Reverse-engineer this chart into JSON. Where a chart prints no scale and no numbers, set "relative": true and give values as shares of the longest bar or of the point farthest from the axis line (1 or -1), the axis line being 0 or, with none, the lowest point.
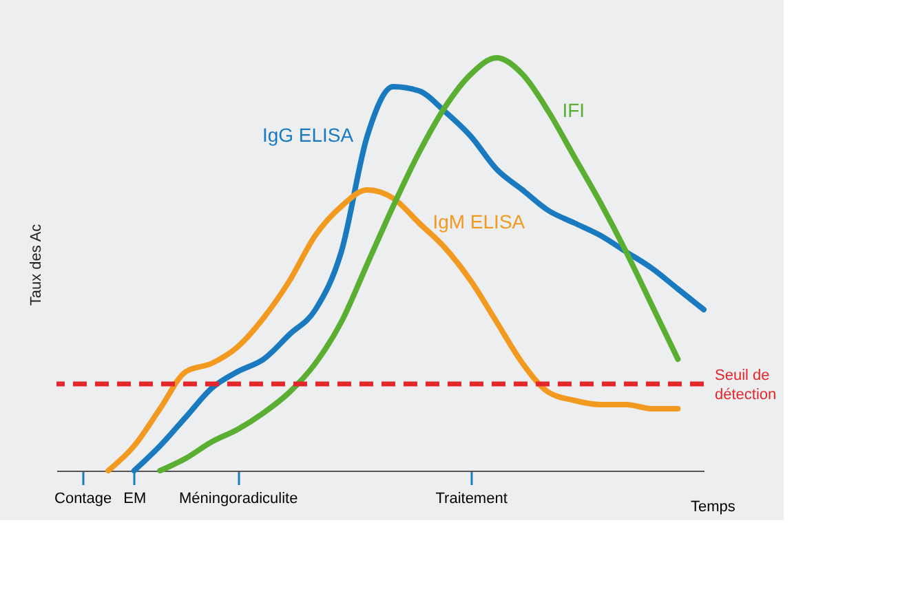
{
  "chart_data": {
    "type": "line",
    "relative": true,
    "xlabel": "Temps",
    "ylabel": "Taux des Ac",
    "categories": [
      null,
      "Contage",
      null,
      "EM",
      null,
      null,
      null,
      "Méningoradiculite",
      null,
      null,
      null,
      null,
      null,
      null,
      null,
      null,
      "Traitement",
      null,
      null,
      null,
      null,
      null,
      null,
      null,
      null,
      null
    ],
    "grid": false,
    "marker": "none",
    "line_style": "solid",
    "series": [
      {
        "name": "IgG ELISA",
        "color": "#1a7abf",
        "values": [
          null,
          null,
          null,
          0,
          0.06,
          0.13,
          0.2,
          0.24,
          0.27,
          0.33,
          0.39,
          0.53,
          0.81,
          0.93,
          0.92,
          0.87,
          0.81,
          0.73,
          0.68,
          0.63,
          0.6,
          0.57,
          0.53,
          0.49,
          0.44,
          0.39
        ]
      },
      {
        "name": "IgM ELISA",
        "color": "#f29a1f",
        "values": [
          null,
          null,
          0,
          0.06,
          0.15,
          0.24,
          0.26,
          0.3,
          0.37,
          0.46,
          0.57,
          0.64,
          0.68,
          0.66,
          0.6,
          0.54,
          0.46,
          0.36,
          0.26,
          0.19,
          0.17,
          0.16,
          0.16,
          0.15,
          0.15,
          null
        ]
      },
      {
        "name": "IFI",
        "color": "#5aaf32",
        "values": [
          null,
          null,
          null,
          null,
          0,
          0.03,
          0.07,
          0.1,
          0.14,
          0.19,
          0.26,
          0.36,
          0.5,
          0.64,
          0.77,
          0.88,
          0.96,
          1,
          0.96,
          0.87,
          0.76,
          0.65,
          0.53,
          0.4,
          0.27,
          null
        ]
      }
    ],
    "ref_lines": [
      {
        "axis": "y",
        "value": 0.21,
        "label": "Seuil de détection",
        "color": "#e3262b",
        "line_style": "dashed"
      }
    ]
  }
}
